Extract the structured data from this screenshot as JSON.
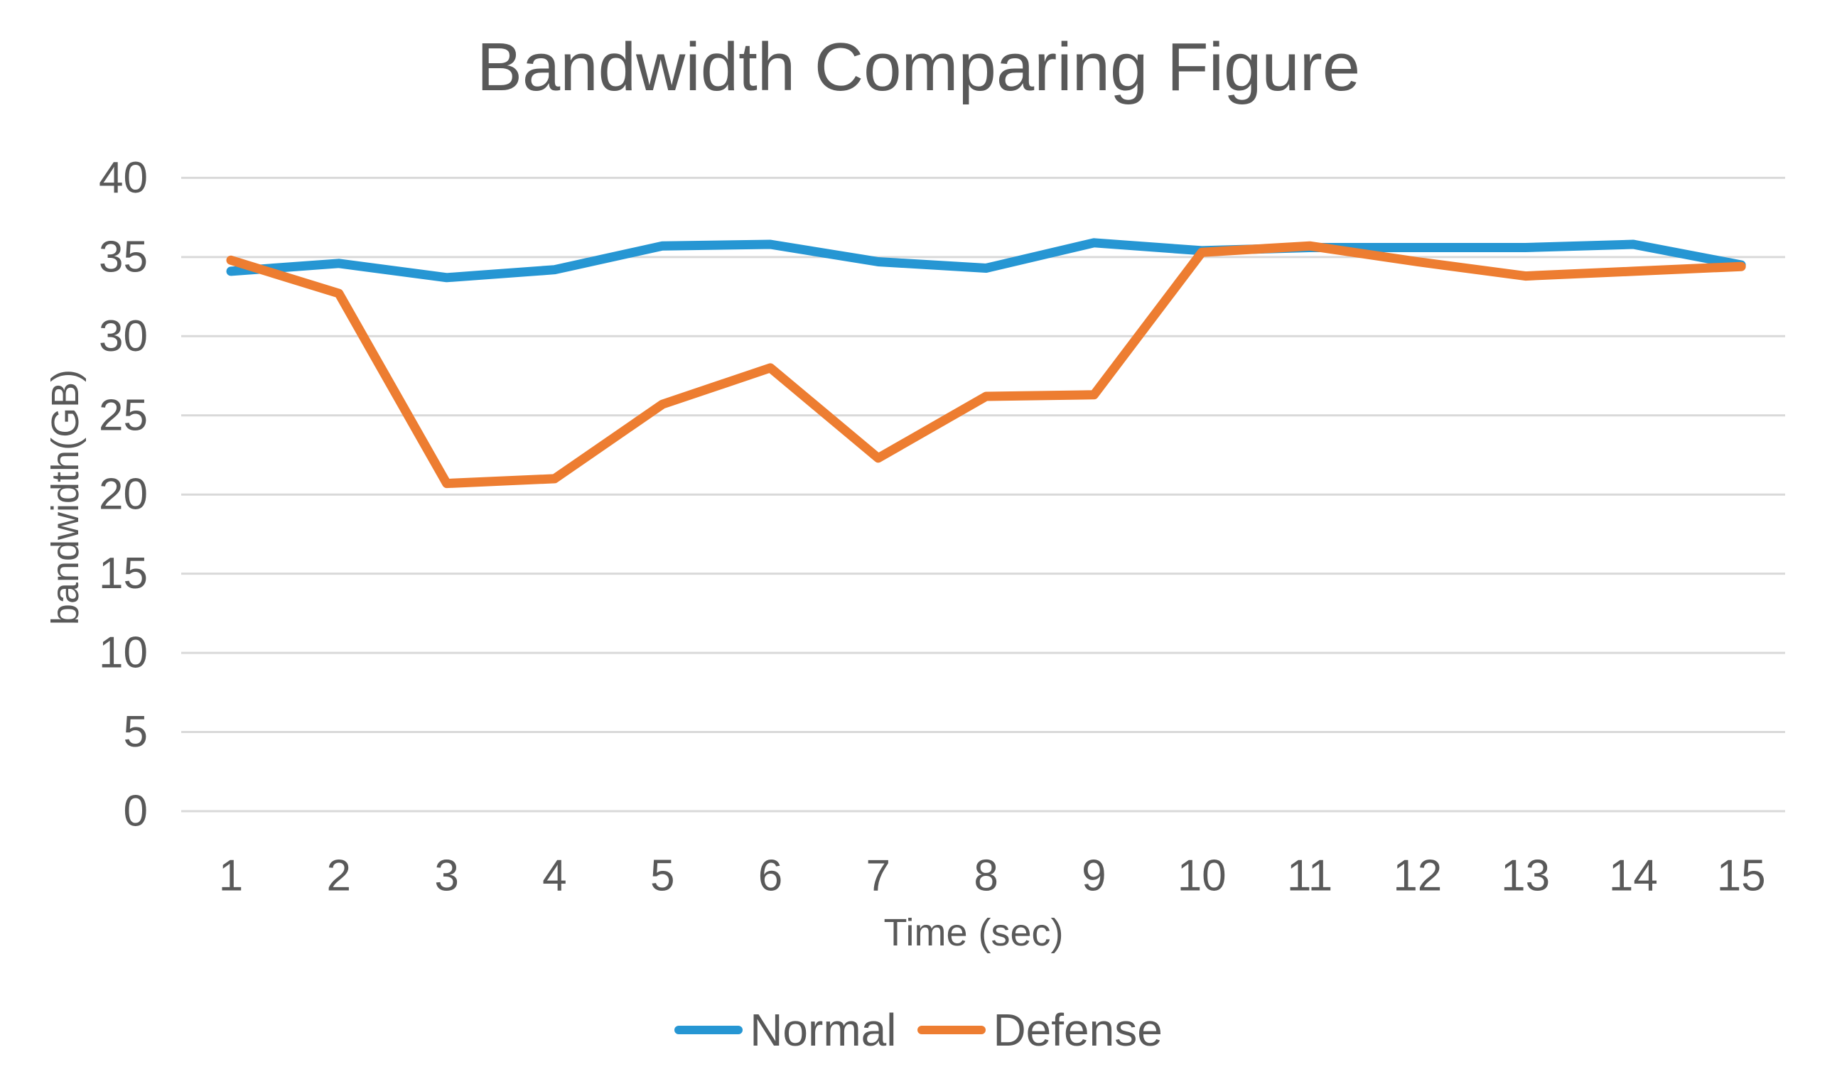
{
  "chart_data": {
    "type": "line",
    "title": "Bandwidth Comparing Figure",
    "xlabel": "Time (sec)",
    "ylabel": "bandwidth(GB)",
    "x": [
      1,
      2,
      3,
      4,
      5,
      6,
      7,
      8,
      9,
      10,
      11,
      12,
      13,
      14,
      15
    ],
    "ylim": [
      0,
      40
    ],
    "y_ticks": [
      0,
      5,
      10,
      15,
      20,
      25,
      30,
      35,
      40
    ],
    "grid": "horizontal-only",
    "legend_position": "bottom",
    "series": [
      {
        "name": "Normal",
        "color": "#2696D3",
        "values": [
          34.1,
          34.6,
          33.7,
          34.2,
          35.7,
          35.8,
          34.7,
          34.3,
          35.9,
          35.4,
          35.6,
          35.6,
          35.6,
          35.8,
          34.5
        ]
      },
      {
        "name": "Defense",
        "color": "#ED7D31",
        "values": [
          34.8,
          32.7,
          20.7,
          21.0,
          25.7,
          28.0,
          22.3,
          26.2,
          26.3,
          35.3,
          35.7,
          34.7,
          33.8,
          34.1,
          34.4
        ]
      }
    ]
  },
  "style": {
    "text_color": "#595959",
    "grid_color": "#D9D9D9",
    "background": "#FFFFFF"
  }
}
